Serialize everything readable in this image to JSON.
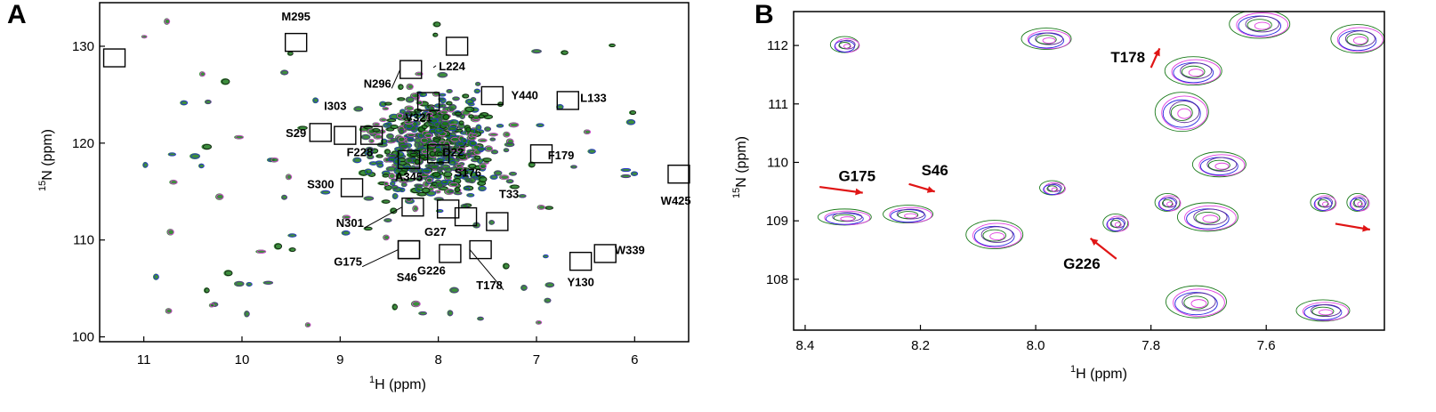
{
  "figure": {
    "panel_a_label": "A",
    "panel_b_label": "B"
  },
  "colors": {
    "green": "#1a7a1a",
    "magenta": "#e040e0",
    "blue": "#2a2ae0",
    "purple": "#5a2a9a",
    "black": "#111111",
    "arrow": "#e01515"
  },
  "chart_data": [
    {
      "type": "scatter",
      "panel": "A",
      "title": "",
      "xlabel_sup": "1",
      "xlabel": "H  (ppm)",
      "ylabel_sup": "15",
      "ylabel": "N  (ppm)",
      "xlim": [
        11.45,
        5.45
      ],
      "ylim": [
        134.5,
        99.5
      ],
      "x_reversed": true,
      "y_reversed": true,
      "xticks": [
        11,
        10,
        9,
        8,
        7,
        6
      ],
      "yticks": [
        100,
        110,
        120,
        130
      ],
      "annotations": [
        {
          "label": "S46",
          "x": 8.3,
          "y": 109.0,
          "lx": 8.32,
          "ly": 106.2
        },
        {
          "label": "G175",
          "x": 8.3,
          "y": 109.0,
          "lx": 8.92,
          "ly": 107.8,
          "leader": true
        },
        {
          "label": "G226",
          "x": 7.88,
          "y": 108.6,
          "lx": 8.07,
          "ly": 106.9
        },
        {
          "label": "T178",
          "x": 7.57,
          "y": 109.0,
          "lx": 7.48,
          "ly": 105.4,
          "leader": true
        },
        {
          "label": "Y130",
          "x": 6.55,
          "y": 107.8,
          "lx": 6.55,
          "ly": 105.7
        },
        {
          "label": "W339",
          "x": 6.3,
          "y": 108.6,
          "lx": 6.05,
          "ly": 109.0
        },
        {
          "label": "N301",
          "x": 8.26,
          "y": 113.4,
          "lx": 8.9,
          "ly": 111.8,
          "leader": true
        },
        {
          "label": "G27",
          "x": 7.9,
          "y": 113.2,
          "lx": 8.03,
          "ly": 110.9
        },
        {
          "label": "T33",
          "x": 7.4,
          "y": 111.9,
          "lx": 7.28,
          "ly": 114.8
        },
        {
          "label": "S300",
          "x": 8.88,
          "y": 115.4,
          "lx": 9.2,
          "ly": 115.8
        },
        {
          "label": "S176",
          "x": 7.72,
          "y": 112.4,
          "lx": 7.7,
          "ly": 117.0
        },
        {
          "label": "A345",
          "x": 8.3,
          "y": 118.3,
          "lx": 8.3,
          "ly": 116.6
        },
        {
          "label": "F179",
          "x": 6.95,
          "y": 118.9,
          "lx": 6.75,
          "ly": 118.8
        },
        {
          "label": "W425",
          "x": 5.55,
          "y": 116.8,
          "lx": 5.58,
          "ly": 114.1
        },
        {
          "label": "F228",
          "x": 8.68,
          "y": 120.8,
          "lx": 8.8,
          "ly": 119.1
        },
        {
          "label": "D22",
          "x": 8.0,
          "y": 118.9,
          "lx": 7.85,
          "ly": 119.1
        },
        {
          "label": "S29",
          "x": 9.2,
          "y": 121.1,
          "lx": 9.45,
          "ly": 121.1
        },
        {
          "label": "I303",
          "x": 8.95,
          "y": 120.8,
          "lx": 9.05,
          "ly": 123.9
        },
        {
          "label": "V321",
          "x": 8.1,
          "y": 124.3,
          "lx": 8.2,
          "ly": 122.7
        },
        {
          "label": "L133",
          "x": 6.68,
          "y": 124.4,
          "lx": 6.42,
          "ly": 124.7
        },
        {
          "label": "Y440",
          "x": 7.45,
          "y": 124.9,
          "lx": 7.12,
          "ly": 125.0
        },
        {
          "label": "N296",
          "x": 8.28,
          "y": 127.6,
          "lx": 8.62,
          "ly": 126.2,
          "leader": true
        },
        {
          "label": "L224",
          "x": 7.81,
          "y": 130.0,
          "lx": 7.86,
          "ly": 128.0,
          "leader_from": [
            8.05,
            127.8
          ]
        },
        {
          "label": "M295",
          "x": 9.45,
          "y": 130.4,
          "lx": 9.45,
          "ly": 133.1
        },
        {
          "label": "",
          "x": 11.3,
          "y": 128.8
        }
      ]
    },
    {
      "type": "scatter",
      "panel": "B",
      "title": "",
      "xlabel_sup": "1",
      "xlabel": "H  (ppm)",
      "ylabel_sup": "15",
      "ylabel": "N  (ppm)",
      "xlim": [
        8.42,
        7.395
      ],
      "ylim": [
        112.58,
        107.13
      ],
      "x_reversed": true,
      "y_reversed": true,
      "xticks": [
        "8.4",
        "8.2",
        "8.0",
        "7.8",
        "7.6"
      ],
      "yticks": [
        108,
        109,
        110,
        111,
        112
      ],
      "annotations": [
        {
          "label": "G226",
          "lx": 7.92,
          "ly": 108.27,
          "arrow": [
            7.86,
            108.35,
            7.905,
            108.7
          ]
        },
        {
          "label": "G175",
          "lx": 8.31,
          "ly": 109.77,
          "arrow": [
            8.375,
            109.58,
            8.3,
            109.48
          ]
        },
        {
          "label": "S46",
          "lx": 8.175,
          "ly": 109.87,
          "arrow": [
            8.22,
            109.63,
            8.175,
            109.5
          ]
        },
        {
          "label": "T178",
          "lx": 7.84,
          "ly": 111.8,
          "arrow": [
            7.8,
            111.62,
            7.785,
            111.95
          ]
        },
        {
          "label": "",
          "arrow": [
            7.48,
            108.95,
            7.42,
            108.85
          ]
        }
      ]
    }
  ]
}
